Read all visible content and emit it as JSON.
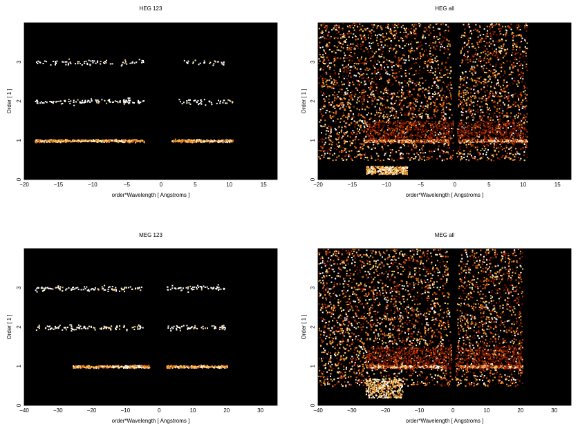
{
  "figure": {
    "panels": [
      {
        "title": "HEG 123",
        "xlabel": "order*Wavelength [ Angstroms ]",
        "ylabel": "Order [ 1 ]",
        "xticks": [
          "−20",
          "−15",
          "−10",
          "−5",
          "0",
          "5",
          "10",
          "15"
        ],
        "yticks": [
          "0",
          "1",
          "2",
          "3"
        ]
      },
      {
        "title": "HEG all",
        "xlabel": "order*Wavelength [ Angstroms ]",
        "ylabel": "Order [ 1 ]",
        "xticks": [
          "−20",
          "−15",
          "−10",
          "−5",
          "0",
          "5",
          "10",
          "15"
        ],
        "yticks": [
          "0",
          "1",
          "2",
          "3"
        ]
      },
      {
        "title": "MEG 123",
        "xlabel": "order*Wavelength [ Angstroms ]",
        "ylabel": "Order [ 1 ]",
        "xticks": [
          "−40",
          "−30",
          "−20",
          "−10",
          "0",
          "10",
          "20",
          "30"
        ],
        "yticks": [
          "0",
          "1",
          "2",
          "3"
        ]
      },
      {
        "title": "MEG all",
        "xlabel": "order*Wavelength [ Angstroms ]",
        "ylabel": "Order [ 1 ]",
        "xticks": [
          "−40",
          "−30",
          "−20",
          "−10",
          "0",
          "10",
          "20",
          "30"
        ],
        "yticks": [
          "0",
          "1",
          "2",
          "3"
        ]
      }
    ]
  },
  "chart_data": [
    {
      "type": "heatmap",
      "title": "HEG 123",
      "xlabel": "order*Wavelength [ Angstroms ]",
      "ylabel": "Order [ 1 ]",
      "xlim": [
        -20,
        17
      ],
      "ylim": [
        0,
        4
      ],
      "xticks": [
        -20,
        -15,
        -10,
        -5,
        0,
        5,
        10,
        15
      ],
      "yticks": [
        0,
        1,
        2,
        3
      ],
      "colormap": [
        "#000000",
        "#5a0800",
        "#b02a00",
        "#e86a10",
        "#f8b040",
        "#ffffff"
      ],
      "features": [
        {
          "order": 1,
          "x_range": [
            -18.5,
            -2.5
          ],
          "peak_x": [
            -12,
            -5
          ],
          "intensity": 0.9
        },
        {
          "order": 1,
          "x_range": [
            1.5,
            10.5
          ],
          "peak_x": [
            5,
            10
          ],
          "intensity": 0.85
        },
        {
          "order": 2,
          "x_range": [
            -18.5,
            -2.5
          ],
          "intensity": 0.18
        },
        {
          "order": 2,
          "x_range": [
            2.5,
            10.5
          ],
          "intensity": 0.15
        },
        {
          "order": 3,
          "x_range": [
            -18.5,
            -2.5
          ],
          "intensity": 0.12
        },
        {
          "order": 3,
          "x_range": [
            3,
            10
          ],
          "intensity": 0.1
        }
      ]
    },
    {
      "type": "heatmap",
      "title": "HEG all",
      "xlabel": "order*Wavelength [ Angstroms ]",
      "ylabel": "Order [ 1 ]",
      "xlim": [
        -20,
        17
      ],
      "ylim": [
        0,
        4
      ],
      "xticks": [
        -20,
        -15,
        -10,
        -5,
        0,
        5,
        10,
        15
      ],
      "yticks": [
        0,
        1,
        2,
        3
      ],
      "colormap": [
        "#000000",
        "#5a0800",
        "#b02a00",
        "#e86a10",
        "#f8b040",
        "#ffffff"
      ],
      "features": [
        {
          "order": 1,
          "x_range": [
            -13,
            -1
          ],
          "intensity": 0.9
        },
        {
          "order": 1,
          "x_range": [
            1,
            10.5
          ],
          "intensity": 0.9
        },
        {
          "region": "background",
          "x_range": [
            -20,
            10.5
          ],
          "order_range": [
            0.5,
            4
          ],
          "intensity": 0.25
        },
        {
          "region": "low-order tail",
          "x_range": [
            -13,
            -7
          ],
          "order_range": [
            0.15,
            0.35
          ],
          "intensity": 0.8
        }
      ]
    },
    {
      "type": "heatmap",
      "title": "MEG 123",
      "xlabel": "order*Wavelength [ Angstroms ]",
      "ylabel": "Order [ 1 ]",
      "xlim": [
        -40,
        35
      ],
      "ylim": [
        0,
        4
      ],
      "xticks": [
        -40,
        -30,
        -20,
        -10,
        0,
        10,
        20,
        30
      ],
      "yticks": [
        0,
        1,
        2,
        3
      ],
      "colormap": [
        "#000000",
        "#5a0800",
        "#b02a00",
        "#e86a10",
        "#f8b040",
        "#ffffff"
      ],
      "features": [
        {
          "order": 1,
          "x_range": [
            -26,
            -3
          ],
          "peak_x": [
            -18,
            -5
          ],
          "intensity": 0.9
        },
        {
          "order": 1,
          "x_range": [
            2,
            20
          ],
          "peak_x": [
            5,
            18
          ],
          "intensity": 0.85
        },
        {
          "order": 2,
          "x_range": [
            -37,
            -5
          ],
          "intensity": 0.2
        },
        {
          "order": 2,
          "x_range": [
            2,
            20
          ],
          "intensity": 0.18
        },
        {
          "order": 3,
          "x_range": [
            -37,
            -5
          ],
          "intensity": 0.2
        },
        {
          "order": 3,
          "x_range": [
            2,
            20
          ],
          "intensity": 0.15
        }
      ]
    },
    {
      "type": "heatmap",
      "title": "MEG all",
      "xlabel": "order*Wavelength [ Angstroms ]",
      "ylabel": "Order [ 1 ]",
      "xlim": [
        -40,
        35
      ],
      "ylim": [
        0,
        4
      ],
      "xticks": [
        -40,
        -30,
        -20,
        -10,
        0,
        10,
        20,
        30
      ],
      "yticks": [
        0,
        1,
        2,
        3
      ],
      "colormap": [
        "#000000",
        "#5a0800",
        "#b02a00",
        "#e86a10",
        "#f8b040",
        "#ffffff"
      ],
      "features": [
        {
          "order": 1,
          "x_range": [
            -26,
            -2
          ],
          "intensity": 0.9
        },
        {
          "order": 1,
          "x_range": [
            2,
            20.5
          ],
          "intensity": 0.9
        },
        {
          "region": "background",
          "x_range": [
            -40,
            20.5
          ],
          "order_range": [
            0.5,
            4
          ],
          "intensity": 0.25
        },
        {
          "region": "low-order tail",
          "x_range": [
            -26,
            -15
          ],
          "order_range": [
            0.2,
            0.7
          ],
          "intensity": 0.8
        }
      ]
    }
  ]
}
